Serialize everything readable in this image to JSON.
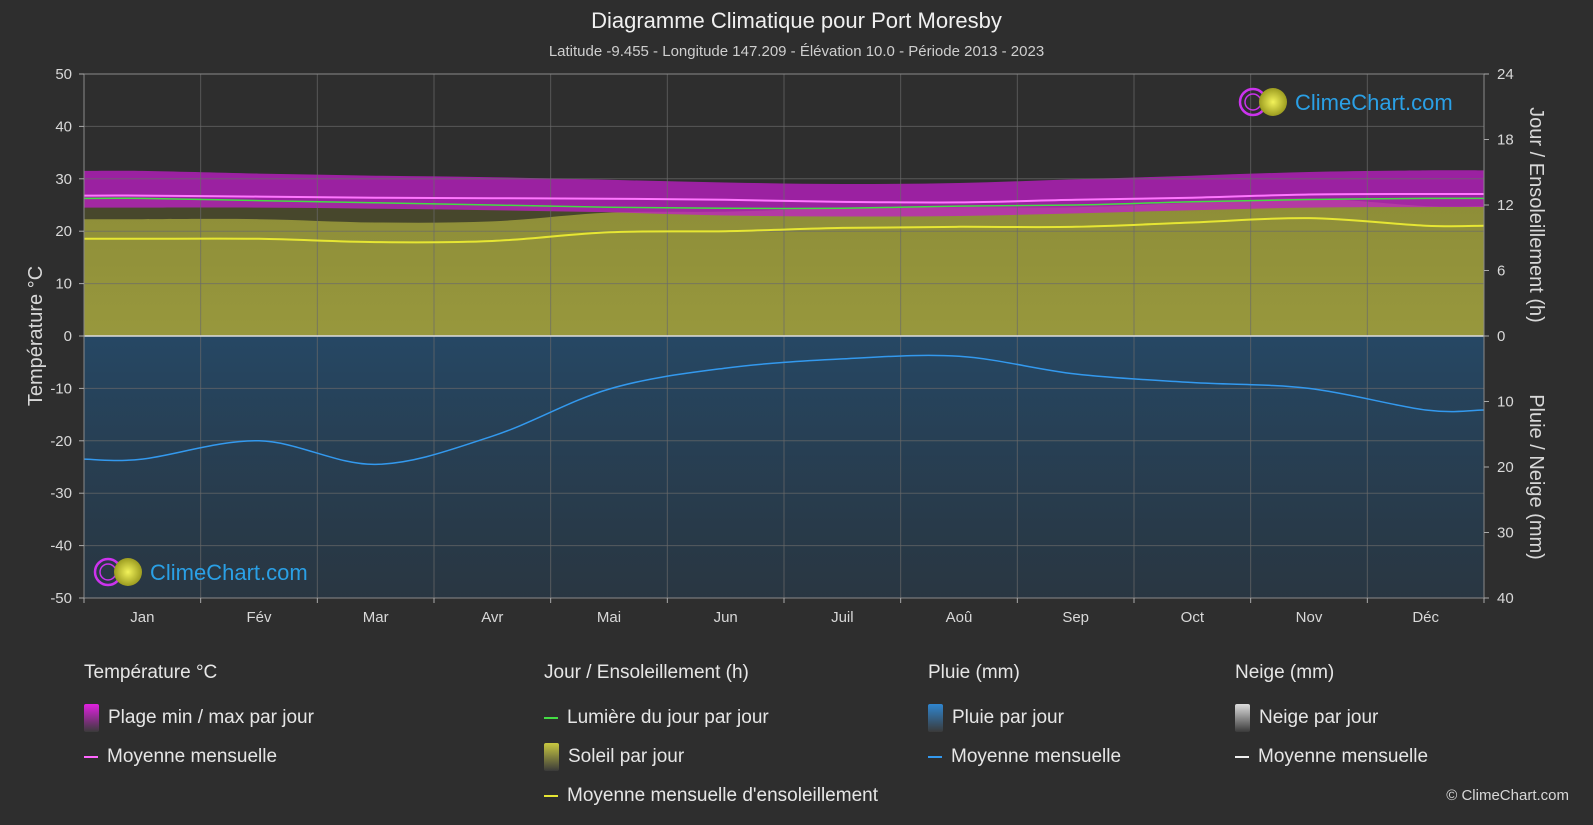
{
  "header": {
    "title": "Diagramme Climatique pour Port Moresby",
    "subtitle": "Latitude -9.455 - Longitude 147.209 - Élévation 10.0 - Période 2013 - 2023"
  },
  "watermark": {
    "text": "ClimeChart.com",
    "icon": "climechart-logo-icon"
  },
  "copyright": "© ClimeChart.com",
  "chart_data": {
    "type": "area",
    "categories": [
      "Jan",
      "Fév",
      "Mar",
      "Avr",
      "Mai",
      "Jun",
      "Juil",
      "Aoû",
      "Sep",
      "Oct",
      "Nov",
      "Déc"
    ],
    "y_left": {
      "label": "Température °C",
      "range": [
        -50,
        50
      ],
      "ticks": [
        "50",
        "40",
        "30",
        "20",
        "10",
        "0",
        "-10",
        "-20",
        "-30",
        "-40",
        "-50"
      ]
    },
    "y_right_top": {
      "label": "Jour / Ensoleillement (h)",
      "range": [
        0,
        24
      ],
      "ticks": [
        "24",
        "18",
        "12",
        "6",
        "0"
      ]
    },
    "y_right_bottom": {
      "label": "Pluie / Neige (mm)",
      "range": [
        0,
        40
      ],
      "ticks": [
        "0",
        "10",
        "20",
        "30",
        "40"
      ]
    },
    "grid": true,
    "series": [
      {
        "name": "Plage min / max par jour",
        "axis": "temperature",
        "kind": "band",
        "min": [
          24.5,
          24.5,
          24.3,
          24.0,
          23.6,
          23.0,
          22.8,
          22.9,
          23.4,
          24.0,
          24.5,
          24.6
        ],
        "max": [
          31.5,
          31.0,
          30.6,
          30.3,
          29.8,
          29.3,
          29.0,
          29.2,
          29.9,
          30.6,
          31.3,
          31.6
        ]
      },
      {
        "name": "Moyenne mensuelle (température)",
        "axis": "temperature",
        "kind": "line",
        "values": [
          26.8,
          26.6,
          26.4,
          26.3,
          26.2,
          26.0,
          25.6,
          25.5,
          26.0,
          26.4,
          27.0,
          27.1
        ]
      },
      {
        "name": "Lumière du jour par jour",
        "axis": "hours",
        "kind": "line",
        "values": [
          12.6,
          12.4,
          12.2,
          12.0,
          11.8,
          11.7,
          11.7,
          11.9,
          12.0,
          12.3,
          12.5,
          12.6
        ]
      },
      {
        "name": "Moyenne mensuelle d'ensoleillement",
        "axis": "hours",
        "kind": "line",
        "values": [
          8.9,
          8.9,
          8.6,
          8.7,
          9.5,
          9.6,
          9.9,
          10.0,
          10.0,
          10.4,
          10.8,
          10.1
        ]
      },
      {
        "name": "Moyenne mensuelle (pluie)",
        "axis": "precip",
        "kind": "line",
        "values": [
          18.8,
          16.0,
          19.6,
          15.3,
          8.1,
          4.9,
          3.5,
          3.1,
          5.8,
          7.1,
          8.0,
          11.3
        ]
      }
    ]
  },
  "legend": {
    "groups": [
      {
        "title": "Température °C",
        "items": [
          {
            "label": "Plage min / max par jour",
            "swatch": "block",
            "color": "#e020e0"
          },
          {
            "label": "Moyenne mensuelle",
            "swatch": "line",
            "color": "#ff66ff"
          }
        ]
      },
      {
        "title": "Jour / Ensoleillement (h)",
        "items": [
          {
            "label": "Lumière du jour par jour",
            "swatch": "line",
            "color": "#44dd44"
          },
          {
            "label": "Soleil par jour",
            "swatch": "block",
            "color": "#c8c840"
          },
          {
            "label": "Moyenne mensuelle d'ensoleillement",
            "swatch": "line",
            "color": "#e6e633"
          }
        ]
      },
      {
        "title": "Pluie (mm)",
        "items": [
          {
            "label": "Pluie par jour",
            "swatch": "block",
            "color": "#2f86d0"
          },
          {
            "label": "Moyenne mensuelle",
            "swatch": "line",
            "color": "#3399ee"
          }
        ]
      },
      {
        "title": "Neige (mm)",
        "items": [
          {
            "label": "Neige par jour",
            "swatch": "block",
            "color": "#dddddd"
          },
          {
            "label": "Moyenne mensuelle",
            "swatch": "line",
            "color": "#eeeeee"
          }
        ]
      }
    ]
  }
}
